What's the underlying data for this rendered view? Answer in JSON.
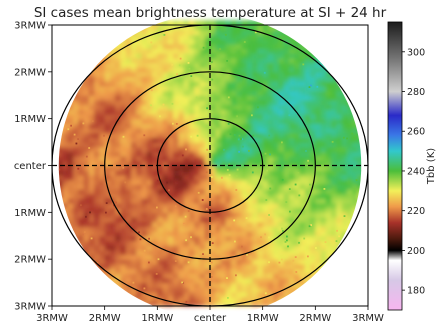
{
  "chart_data": {
    "type": "heatmap",
    "title": "SI cases mean brightness temperature at SI + 24 hr",
    "xlabel": "",
    "ylabel": "",
    "x_tick_labels": [
      "3RMW",
      "2RMW",
      "1RMW",
      "center",
      "1RMW",
      "2RMW",
      "3RMW"
    ],
    "y_tick_labels": [
      "3RMW",
      "2RMW",
      "1RMW",
      "center",
      "1RMW",
      "2RMW",
      "3RMW"
    ],
    "x_range": [
      -3,
      3
    ],
    "y_range": [
      -3,
      3
    ],
    "domain_shape": "circle of radius 3RMW",
    "range_rings_rmw": [
      1,
      2,
      3
    ],
    "crosshair": "dashed lines through center",
    "colorbar": {
      "label": "Tbb (K)",
      "ticks": [
        180,
        200,
        220,
        240,
        260,
        280,
        300
      ],
      "vmin": 170,
      "vmax": 315,
      "colors": [
        {
          "value": 170,
          "color": "#f7b6f0"
        },
        {
          "value": 185,
          "color": "#d6c8e6"
        },
        {
          "value": 195,
          "color": "#ffffff"
        },
        {
          "value": 200,
          "color": "#000000"
        },
        {
          "value": 206,
          "color": "#4e1a0e"
        },
        {
          "value": 214,
          "color": "#a8322a"
        },
        {
          "value": 222,
          "color": "#ef9a4a"
        },
        {
          "value": 230,
          "color": "#f3f05a"
        },
        {
          "value": 240,
          "color": "#4bbe3a"
        },
        {
          "value": 250,
          "color": "#32c8cc"
        },
        {
          "value": 258,
          "color": "#3a78e6"
        },
        {
          "value": 268,
          "color": "#2a2ac8"
        },
        {
          "value": 280,
          "color": "#cfcfcf"
        },
        {
          "value": 295,
          "color": "#7d7d7d"
        },
        {
          "value": 315,
          "color": "#1c1c1c"
        }
      ]
    },
    "field_description_values_K": {
      "west_sector": 213,
      "south_southwest_sector": 216,
      "center": 223,
      "north_sector": 228,
      "east_sector": 243,
      "northeast_sector": 252
    }
  }
}
